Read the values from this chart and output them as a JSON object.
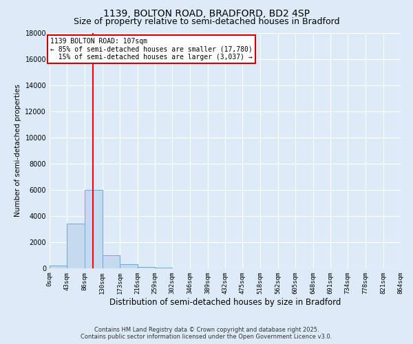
{
  "title": "1139, BOLTON ROAD, BRADFORD, BD2 4SP",
  "subtitle": "Size of property relative to semi-detached houses in Bradford",
  "xlabel": "Distribution of semi-detached houses by size in Bradford",
  "ylabel": "Number of semi-detached properties",
  "bin_edges": [
    0,
    43,
    86,
    130,
    173,
    216,
    259,
    302,
    346,
    389,
    432,
    475,
    518,
    562,
    605,
    648,
    691,
    734,
    778,
    821,
    864
  ],
  "bin_counts": [
    200,
    3400,
    6000,
    1000,
    300,
    100,
    50,
    0,
    0,
    0,
    0,
    0,
    0,
    0,
    0,
    0,
    0,
    0,
    0,
    0
  ],
  "bar_color": "#c5d9ef",
  "bar_edge_color": "#6fa8d6",
  "red_line_x": 107,
  "ylim": [
    0,
    18000
  ],
  "yticks": [
    0,
    2000,
    4000,
    6000,
    8000,
    10000,
    12000,
    14000,
    16000,
    18000
  ],
  "annotation_text": "1139 BOLTON ROAD: 107sqm\n← 85% of semi-detached houses are smaller (17,780)\n  15% of semi-detached houses are larger (3,037) →",
  "annotation_box_color": "#ffffff",
  "annotation_box_edge": "#cc0000",
  "background_color": "#ddeaf8",
  "grid_color": "#ffffff",
  "footer_line1": "Contains HM Land Registry data © Crown copyright and database right 2025.",
  "footer_line2": "Contains public sector information licensed under the Open Government Licence v3.0.",
  "title_fontsize": 10,
  "subtitle_fontsize": 9,
  "tick_label_fontsize": 6.5,
  "xlabel_fontsize": 8.5,
  "ylabel_fontsize": 7.5,
  "footer_fontsize": 6
}
